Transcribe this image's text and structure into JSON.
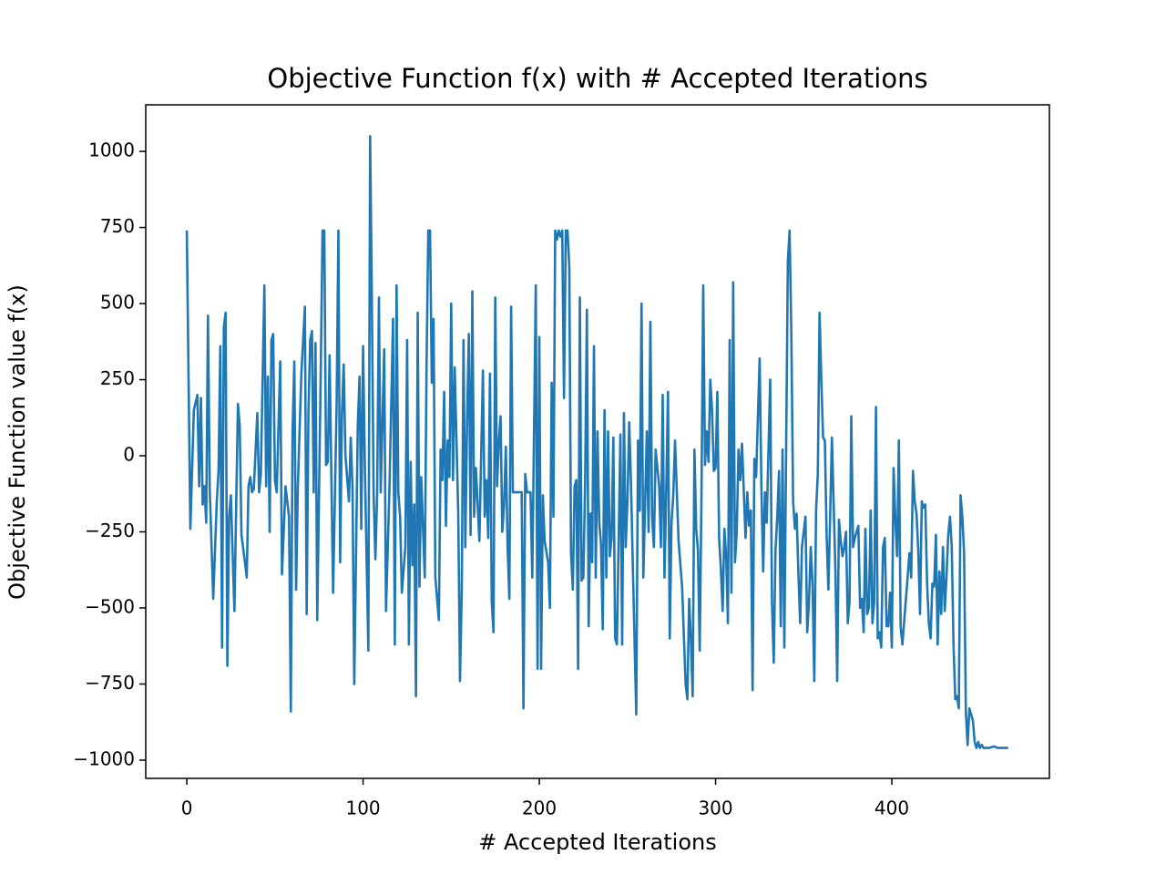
{
  "chart_data": {
    "type": "line",
    "title": "Objective Function f(x) with # Accepted Iterations",
    "x_label": "# Accepted Iterations",
    "y_label": "Objective Function value f(x)",
    "x": [
      0,
      2,
      4,
      6,
      7,
      8,
      9,
      10,
      11,
      12,
      13,
      15,
      17,
      18,
      19,
      20,
      21,
      22,
      23,
      24,
      25,
      27,
      29,
      30,
      31,
      33,
      34,
      35,
      36,
      37,
      38,
      40,
      41,
      42,
      44,
      45,
      46,
      47,
      48,
      49,
      50,
      51,
      53,
      54,
      56,
      58,
      59,
      60,
      61,
      62,
      63,
      65,
      67,
      68,
      69,
      70,
      71,
      72,
      73,
      74,
      76,
      77,
      78,
      79,
      80,
      81,
      83,
      85,
      86,
      87,
      88,
      89,
      90,
      92,
      93,
      94,
      95,
      97,
      98,
      99,
      100,
      101,
      103,
      104,
      105,
      106,
      107,
      108,
      109,
      110,
      111,
      112,
      113,
      115,
      117,
      118,
      119,
      120,
      121,
      122,
      124,
      125,
      126,
      127,
      128,
      129,
      130,
      131,
      132,
      133,
      135,
      136,
      137,
      138,
      139,
      140,
      141,
      143,
      144,
      145,
      146,
      147,
      148,
      149,
      150,
      151,
      152,
      154,
      155,
      156,
      157,
      158,
      159,
      160,
      161,
      162,
      163,
      164,
      166,
      168,
      169,
      170,
      171,
      172,
      173,
      174,
      175,
      176,
      177,
      178,
      179,
      180,
      181,
      182,
      183,
      184,
      185,
      190,
      191,
      192,
      193,
      195,
      196,
      198,
      199,
      200,
      201,
      202,
      203,
      205,
      206,
      207,
      208,
      209,
      210,
      211,
      212,
      213,
      214,
      215,
      216,
      217,
      218,
      219,
      220,
      221,
      222,
      223,
      224,
      225,
      226,
      227,
      228,
      229,
      230,
      231,
      232,
      233,
      234,
      235,
      236,
      237,
      238,
      239,
      240,
      241,
      242,
      243,
      244,
      245,
      246,
      247,
      248,
      249,
      250,
      251,
      252,
      253,
      255,
      256,
      257,
      258,
      259,
      261,
      262,
      263,
      264,
      265,
      266,
      268,
      269,
      270,
      271,
      272,
      273,
      274,
      275,
      276,
      277,
      279,
      281,
      283,
      284,
      285,
      286,
      287,
      288,
      289,
      290,
      291,
      292,
      293,
      294,
      295,
      296,
      297,
      298,
      299,
      300,
      301,
      302,
      303,
      304,
      305,
      306,
      307,
      308,
      309,
      310,
      311,
      312,
      313,
      314,
      315,
      317,
      318,
      319,
      320,
      321,
      322,
      323,
      325,
      326,
      327,
      328,
      329,
      331,
      332,
      333,
      334,
      335,
      336,
      337,
      338,
      339,
      341,
      342,
      343,
      344,
      345,
      346,
      347,
      348,
      349,
      351,
      352,
      353,
      354,
      355,
      356,
      357,
      358,
      359,
      360,
      361,
      362,
      363,
      364,
      365,
      366,
      367,
      368,
      369,
      370,
      371,
      372,
      373,
      374,
      375,
      376,
      377,
      378,
      379,
      380,
      381,
      382,
      383,
      384,
      385,
      386,
      387,
      388,
      389,
      390,
      391,
      392,
      393,
      394,
      395,
      396,
      397,
      398,
      399,
      400,
      401,
      402,
      403,
      404,
      405,
      406,
      408,
      410,
      411,
      412,
      413,
      414,
      415,
      416,
      417,
      418,
      419,
      420,
      421,
      422,
      423,
      424,
      425,
      426,
      427,
      428,
      429,
      430,
      431,
      432,
      433,
      434,
      435,
      436,
      437,
      438,
      439,
      440,
      441,
      442,
      443,
      444,
      445,
      446,
      447,
      448,
      449,
      450,
      451,
      452,
      455,
      458,
      460,
      464,
      466
    ],
    "values": [
      740,
      -240,
      150,
      200,
      -100,
      190,
      -160,
      -100,
      -220,
      460,
      -110,
      -470,
      -150,
      -50,
      360,
      -630,
      420,
      470,
      -690,
      -200,
      -130,
      -510,
      170,
      100,
      -260,
      -350,
      -400,
      -100,
      -70,
      -120,
      -110,
      140,
      -120,
      -60,
      560,
      -100,
      260,
      -250,
      380,
      400,
      -80,
      -120,
      310,
      -390,
      -100,
      -200,
      -840,
      80,
      310,
      -440,
      -100,
      270,
      490,
      -520,
      140,
      380,
      410,
      -120,
      370,
      -540,
      280,
      740,
      740,
      -30,
      -20,
      330,
      -450,
      170,
      740,
      -350,
      130,
      300,
      0,
      -150,
      60,
      -100,
      -750,
      100,
      260,
      -240,
      360,
      -30,
      -640,
      1050,
      500,
      -130,
      -340,
      -120,
      520,
      -120,
      110,
      350,
      -510,
      -100,
      450,
      -620,
      560,
      -120,
      -200,
      -450,
      -300,
      380,
      -620,
      -20,
      -360,
      -160,
      -790,
      470,
      -430,
      -70,
      -400,
      290,
      740,
      740,
      240,
      450,
      -400,
      -540,
      20,
      -80,
      210,
      -230,
      50,
      -70,
      500,
      -80,
      290,
      -190,
      -740,
      -440,
      380,
      -300,
      110,
      400,
      -260,
      540,
      -200,
      -40,
      -280,
      280,
      -200,
      -80,
      -270,
      270,
      -480,
      -580,
      520,
      -100,
      40,
      130,
      -250,
      -160,
      30,
      -300,
      -470,
      490,
      -120,
      -120,
      -830,
      -60,
      -120,
      -120,
      -400,
      560,
      -700,
      390,
      -700,
      -130,
      -280,
      -350,
      -500,
      240,
      -200,
      740,
      710,
      740,
      720,
      740,
      190,
      740,
      740,
      620,
      -320,
      -440,
      -100,
      -80,
      -700,
      520,
      -410,
      -400,
      -80,
      480,
      -560,
      -190,
      -350,
      360,
      -400,
      80,
      -220,
      -290,
      -570,
      150,
      -400,
      80,
      -330,
      -270,
      60,
      -600,
      -620,
      -280,
      70,
      -620,
      140,
      -300,
      -150,
      110,
      -90,
      -350,
      -850,
      50,
      -180,
      500,
      -400,
      80,
      -250,
      440,
      -200,
      -300,
      20,
      -100,
      -300,
      200,
      -400,
      -120,
      210,
      -600,
      -220,
      -130,
      50,
      -280,
      -430,
      -750,
      -800,
      -470,
      -600,
      -790,
      20,
      -240,
      -310,
      -640,
      -130,
      560,
      -30,
      80,
      -20,
      250,
      150,
      -50,
      -40,
      210,
      -270,
      -370,
      -510,
      -240,
      -330,
      -550,
      380,
      -450,
      570,
      -350,
      -250,
      20,
      -80,
      40,
      -270,
      -120,
      -230,
      -180,
      -770,
      -10,
      -70,
      320,
      -100,
      -380,
      -120,
      -220,
      250,
      -480,
      -680,
      -310,
      -200,
      -50,
      -560,
      20,
      -630,
      640,
      740,
      390,
      -150,
      -240,
      -190,
      -390,
      -550,
      -300,
      -200,
      -580,
      -480,
      -300,
      -420,
      -740,
      -180,
      -60,
      470,
      250,
      60,
      50,
      -260,
      -440,
      -200,
      60,
      -160,
      -380,
      -740,
      -210,
      -280,
      -330,
      -300,
      -250,
      -550,
      -480,
      130,
      -300,
      -270,
      -250,
      -230,
      -500,
      -470,
      -580,
      -240,
      -520,
      -500,
      -180,
      -550,
      -480,
      160,
      -600,
      -580,
      -630,
      -300,
      -270,
      -560,
      -560,
      -450,
      -630,
      -40,
      -210,
      -330,
      50,
      -560,
      -620,
      -470,
      -320,
      -400,
      -50,
      -150,
      -190,
      -310,
      -520,
      -150,
      -170,
      -160,
      -420,
      -550,
      -600,
      -420,
      -430,
      -260,
      -620,
      -380,
      -520,
      -300,
      -510,
      -400,
      -260,
      -200,
      -300,
      -620,
      -800,
      -790,
      -830,
      -130,
      -200,
      -320,
      -840,
      -950,
      -830,
      -850,
      -870,
      -940,
      -960,
      -940,
      -960,
      -950,
      -960,
      -960,
      -955,
      -960,
      -960,
      -960
    ],
    "color": "#1f77b4",
    "xlim": [
      -23.3,
      489.4
    ],
    "ylim": [
      -1060,
      1153
    ],
    "xticks": [
      0,
      100,
      200,
      300,
      400
    ],
    "yticks": [
      {
        "value": -1000,
        "label": "−1000"
      },
      {
        "value": -750,
        "label": "−750"
      },
      {
        "value": -500,
        "label": "−500"
      },
      {
        "value": -250,
        "label": "−250"
      },
      0,
      250,
      500,
      750,
      1000
    ]
  }
}
